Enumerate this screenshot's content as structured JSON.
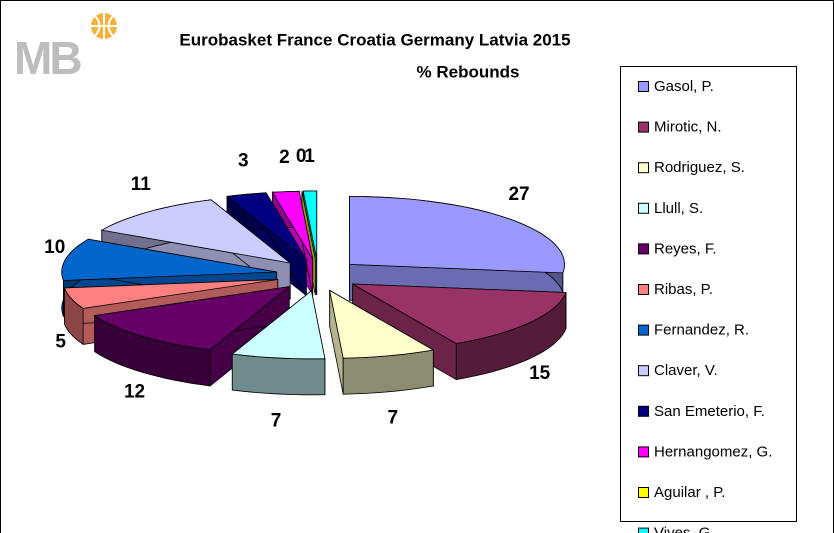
{
  "logo": "MB",
  "chart_data": {
    "type": "pie3d",
    "title": "Eurobasket France Croatia Germany Latvia 2015",
    "subtitle": "% Rebounds",
    "categories": [
      "Gasol, P.",
      "Mirotic, N.",
      "Rodriguez, S.",
      "Llull, S.",
      "Reyes, F.",
      "Ribas, P.",
      "Fernandez, R.",
      "Claver, V.",
      "San Emeterio, F.",
      "Hernangomez, G.",
      "Aguilar , P.",
      "Vives, G."
    ],
    "values": [
      27,
      15,
      7,
      7,
      12,
      5,
      10,
      11,
      3,
      2,
      0,
      1
    ],
    "colors": [
      "#9999ff",
      "#993366",
      "#ffffcc",
      "#ccffff",
      "#660066",
      "#ff8080",
      "#0066cc",
      "#ccccff",
      "#000080",
      "#ff00ff",
      "#ffff00",
      "#00ffff"
    ],
    "legend": "right"
  }
}
